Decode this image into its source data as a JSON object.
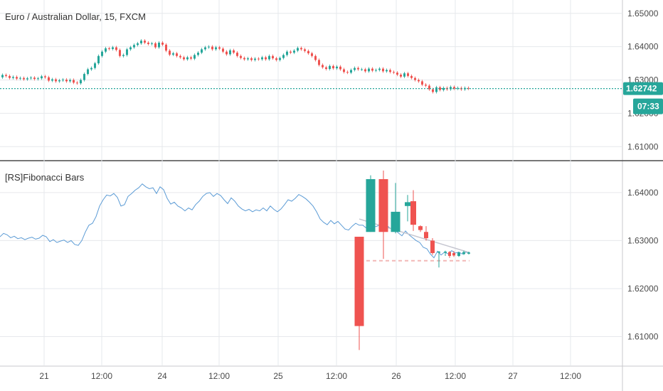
{
  "colors": {
    "up": "#26a69a",
    "down": "#ef5350",
    "line": "#5b9bd5",
    "grid": "#e6e8ec",
    "axis_text": "#4a4a4a",
    "price_badge": "#26a69a",
    "badge_text": "#ffffff"
  },
  "chart_data": [
    {
      "type": "line",
      "pane": "main",
      "title": "Euro / Australian Dollar, 15, FXCM",
      "last_price": "1.62742",
      "countdown": "07:33",
      "y_ticks": [
        "1.65000",
        "1.64000",
        "1.63000",
        "1.62000",
        "1.61000"
      ],
      "ylim": [
        1.606,
        1.654
      ],
      "series": [
        {
          "x": [
            0,
            5,
            10,
            15,
            20,
            25,
            30,
            35,
            40,
            45,
            50,
            55,
            60,
            65,
            70,
            75,
            80,
            85,
            90,
            95,
            100,
            105,
            110,
            115,
            120,
            125,
            130,
            135,
            140,
            145,
            150,
            155,
            160,
            165,
            170,
            175,
            180,
            185,
            190,
            195,
            200,
            205,
            210,
            215,
            220,
            225,
            230,
            235,
            240,
            245,
            250,
            255,
            260,
            265,
            270,
            275,
            280,
            285,
            290,
            295,
            300,
            305,
            310,
            315,
            320,
            325,
            330,
            335,
            340,
            345,
            350,
            355,
            360,
            365,
            370,
            375,
            380,
            385,
            390,
            395,
            400,
            405,
            410,
            415,
            420,
            425,
            430,
            435,
            440,
            445,
            450,
            455,
            460,
            465,
            470,
            475,
            480,
            485,
            490,
            495,
            500,
            505,
            510,
            515,
            520,
            525,
            530,
            535,
            540,
            545,
            550,
            555,
            560,
            565,
            570,
            575,
            580,
            585,
            590,
            595,
            600,
            605,
            610,
            615,
            620,
            625,
            630,
            635,
            640,
            645,
            650,
            655,
            660
          ],
          "values": [
            1.6308,
            1.6315,
            1.6312,
            1.6306,
            1.6309,
            1.6304,
            1.6306,
            1.6302,
            1.6305,
            1.6307,
            1.6303,
            1.6305,
            1.6311,
            1.6308,
            1.6298,
            1.6302,
            1.6296,
            1.6299,
            1.6301,
            1.6296,
            1.63,
            1.6292,
            1.629,
            1.63,
            1.6318,
            1.6332,
            1.6336,
            1.635,
            1.6372,
            1.6385,
            1.6395,
            1.6393,
            1.6398,
            1.639,
            1.6372,
            1.6375,
            1.6392,
            1.6398,
            1.6405,
            1.641,
            1.6418,
            1.6412,
            1.6408,
            1.641,
            1.6398,
            1.6412,
            1.6406,
            1.6388,
            1.6376,
            1.638,
            1.6372,
            1.6368,
            1.6362,
            1.6368,
            1.6364,
            1.6375,
            1.6382,
            1.6392,
            1.6398,
            1.64,
            1.6392,
            1.6398,
            1.6394,
            1.6385,
            1.6377,
            1.6389,
            1.6382,
            1.6372,
            1.6366,
            1.6362,
            1.6365,
            1.636,
            1.6364,
            1.6362,
            1.6368,
            1.6362,
            1.6372,
            1.6365,
            1.636,
            1.6366,
            1.6375,
            1.6385,
            1.6382,
            1.6388,
            1.6396,
            1.6392,
            1.6387,
            1.638,
            1.6372,
            1.636,
            1.6345,
            1.6338,
            1.6333,
            1.6342,
            1.6335,
            1.634,
            1.6332,
            1.6324,
            1.6322,
            1.633,
            1.6336,
            1.6332,
            1.6332,
            1.6326,
            1.6334,
            1.6328,
            1.633,
            1.6334,
            1.6326,
            1.633,
            1.6324,
            1.6322,
            1.6316,
            1.631,
            1.632,
            1.6312,
            1.6306,
            1.63,
            1.6296,
            1.6286,
            1.6283,
            1.6272,
            1.6264,
            1.6278,
            1.627,
            1.6276,
            1.6272,
            1.6279,
            1.6274,
            1.6276,
            1.6272,
            1.6276,
            1.6274
          ]
        }
      ]
    },
    {
      "type": "line",
      "pane": "indicator",
      "title": "[RS]Fibonacci Bars",
      "y_ticks": [
        "1.64000",
        "1.63000",
        "1.62000",
        "1.61000"
      ],
      "ylim": [
        1.604,
        1.6465
      ],
      "x_ticks": [
        "21",
        "12:00",
        "24",
        "12:00",
        "25",
        "12:00",
        "26",
        "12:00",
        "27",
        "12:00"
      ],
      "series": [
        {
          "x": [
            0,
            5,
            10,
            15,
            20,
            25,
            30,
            35,
            40,
            45,
            50,
            55,
            60,
            65,
            70,
            75,
            80,
            85,
            90,
            95,
            100,
            105,
            110,
            115,
            120,
            125,
            130,
            135,
            140,
            145,
            150,
            155,
            160,
            165,
            170,
            175,
            180,
            185,
            190,
            195,
            200,
            205,
            210,
            215,
            220,
            225,
            230,
            235,
            240,
            245,
            250,
            255,
            260,
            265,
            270,
            275,
            280,
            285,
            290,
            295,
            300,
            305,
            310,
            315,
            320,
            325,
            330,
            335,
            340,
            345,
            350,
            355,
            360,
            365,
            370,
            375,
            380,
            385,
            390,
            395,
            400,
            405,
            410,
            415,
            420,
            425,
            430,
            435,
            440,
            445,
            450,
            455,
            460,
            465,
            470,
            475,
            480,
            485,
            490,
            495,
            500,
            505,
            510,
            515,
            520,
            525,
            530,
            535,
            540,
            545,
            550,
            555,
            560,
            565,
            570,
            575,
            580,
            585,
            590,
            595,
            600,
            605,
            610,
            615,
            620,
            625,
            630,
            635,
            640,
            645,
            650,
            655,
            660
          ],
          "values": [
            1.6308,
            1.6315,
            1.6312,
            1.6306,
            1.6309,
            1.6304,
            1.6306,
            1.6302,
            1.6305,
            1.6307,
            1.6303,
            1.6305,
            1.6311,
            1.6308,
            1.6298,
            1.6302,
            1.6296,
            1.6299,
            1.6301,
            1.6296,
            1.63,
            1.6292,
            1.629,
            1.63,
            1.6318,
            1.6332,
            1.6336,
            1.635,
            1.6372,
            1.6385,
            1.6395,
            1.6393,
            1.6398,
            1.639,
            1.6372,
            1.6375,
            1.6392,
            1.6398,
            1.6405,
            1.641,
            1.6418,
            1.6412,
            1.6408,
            1.641,
            1.6398,
            1.6412,
            1.6406,
            1.6388,
            1.6376,
            1.638,
            1.6372,
            1.6368,
            1.6362,
            1.6368,
            1.6364,
            1.6375,
            1.6382,
            1.6392,
            1.6398,
            1.64,
            1.6392,
            1.6398,
            1.6394,
            1.6385,
            1.6377,
            1.6389,
            1.6382,
            1.6372,
            1.6366,
            1.6362,
            1.6365,
            1.636,
            1.6364,
            1.6362,
            1.6368,
            1.6362,
            1.6372,
            1.6365,
            1.636,
            1.6366,
            1.6375,
            1.6385,
            1.6382,
            1.6388,
            1.6396,
            1.6392,
            1.6387,
            1.638,
            1.6372,
            1.636,
            1.6345,
            1.6338,
            1.6333,
            1.6342,
            1.6335,
            1.634,
            1.6332,
            1.6324,
            1.6322,
            1.633,
            1.6336,
            1.6332,
            1.6332,
            1.6326,
            1.6334,
            1.6328,
            1.633,
            1.6334,
            1.6326,
            1.633,
            1.6324,
            1.6322,
            1.6316,
            1.631,
            1.632,
            1.6312,
            1.6306,
            1.63,
            1.6296,
            1.6286,
            1.6283,
            1.6272,
            1.6264,
            1.6278,
            1.627,
            1.6276,
            1.6272,
            1.6279,
            1.6274,
            1.6276,
            1.6272,
            1.6276,
            1.6274
          ]
        }
      ],
      "fib_bars": [
        {
          "x": 505,
          "open": 1.6308,
          "close": 1.6122,
          "high": 1.6308,
          "low": 1.6072
        },
        {
          "x": 521,
          "open": 1.6318,
          "close": 1.6428,
          "high": 1.6436,
          "low": 1.6318
        },
        {
          "x": 539,
          "open": 1.6428,
          "close": 1.6318,
          "high": 1.6446,
          "low": 1.6262
        },
        {
          "x": 556,
          "open": 1.6318,
          "close": 1.636,
          "high": 1.642,
          "low": 1.6315
        },
        {
          "x": 573,
          "open": 1.6372,
          "close": 1.638,
          "high": 1.6395,
          "low": 1.634
        },
        {
          "x": 581,
          "open": 1.6382,
          "close": 1.6333,
          "high": 1.6405,
          "low": 1.632
        },
        {
          "x": 591,
          "open": 1.633,
          "close": 1.6322,
          "high": 1.6332,
          "low": 1.6318
        },
        {
          "x": 599,
          "open": 1.6318,
          "close": 1.6305,
          "high": 1.633,
          "low": 1.63
        },
        {
          "x": 608,
          "open": 1.63,
          "close": 1.6274,
          "high": 1.6305,
          "low": 1.627
        },
        {
          "x": 617,
          "open": 1.6275,
          "close": 1.6277,
          "high": 1.6278,
          "low": 1.6244
        },
        {
          "x": 626,
          "open": 1.6275,
          "close": 1.6277,
          "high": 1.6279,
          "low": 1.6268
        },
        {
          "x": 632,
          "open": 1.6276,
          "close": 1.6268,
          "high": 1.6278,
          "low": 1.6264
        },
        {
          "x": 638,
          "open": 1.6274,
          "close": 1.6269,
          "high": 1.6278,
          "low": 1.6266
        },
        {
          "x": 645,
          "open": 1.6268,
          "close": 1.6275,
          "high": 1.6277,
          "low": 1.6266
        },
        {
          "x": 652,
          "open": 1.6272,
          "close": 1.6276,
          "high": 1.6279,
          "low": 1.627
        },
        {
          "x": 659,
          "open": 1.6273,
          "close": 1.6275,
          "high": 1.6277,
          "low": 1.6271
        }
      ],
      "support_level": 1.6258,
      "trend_line": [
        {
          "x": 505,
          "y": 1.6345
        },
        {
          "x": 660,
          "y": 1.6275
        }
      ]
    }
  ]
}
